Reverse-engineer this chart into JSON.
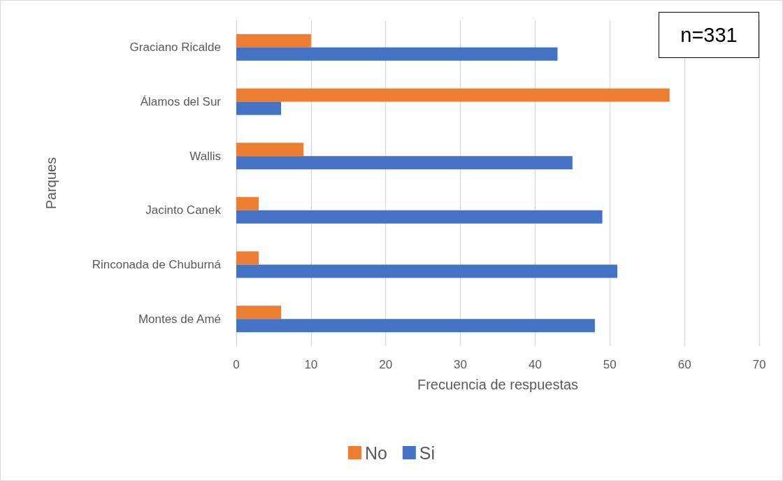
{
  "chart_data": {
    "type": "bar",
    "orientation": "horizontal",
    "xlabel": "Frecuencia de respuestas",
    "ylabel": "Parques",
    "categories": [
      "Graciano Ricalde",
      "Álamos del Sur",
      "Wallis",
      "Jacinto Canek",
      "Rinconada de Chuburná",
      "Montes de Amé"
    ],
    "series": [
      {
        "name": "No",
        "color": "#ed7d31",
        "values": [
          10,
          58,
          9,
          3,
          3,
          6
        ]
      },
      {
        "name": "Si",
        "color": "#4472c4",
        "values": [
          43,
          6,
          45,
          49,
          51,
          48
        ]
      }
    ],
    "xlim": [
      0,
      70
    ],
    "xticks": [
      0,
      10,
      20,
      30,
      40,
      50,
      60,
      70
    ],
    "grid": "x",
    "legend": "bottom",
    "annotations": [
      "n=331"
    ]
  }
}
